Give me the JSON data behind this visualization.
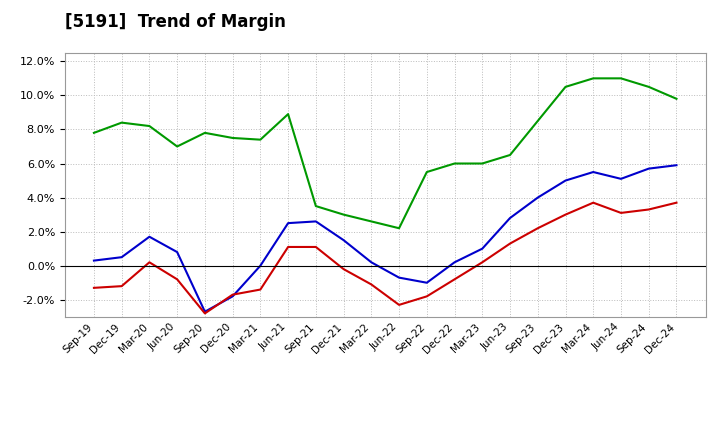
{
  "title": "[5191]  Trend of Margin",
  "x_labels": [
    "Sep-19",
    "Dec-19",
    "Mar-20",
    "Jun-20",
    "Sep-20",
    "Dec-20",
    "Mar-21",
    "Jun-21",
    "Sep-21",
    "Dec-21",
    "Mar-22",
    "Jun-22",
    "Sep-22",
    "Dec-22",
    "Mar-23",
    "Jun-23",
    "Sep-23",
    "Dec-23",
    "Mar-24",
    "Jun-24",
    "Sep-24",
    "Dec-24"
  ],
  "ordinary_income": [
    0.3,
    0.5,
    1.7,
    0.8,
    -2.7,
    -1.8,
    0.0,
    2.5,
    2.6,
    1.5,
    0.2,
    -0.7,
    -1.0,
    0.2,
    1.0,
    2.8,
    4.0,
    5.0,
    5.5,
    5.1,
    5.7,
    5.9
  ],
  "net_income": [
    -1.3,
    -1.2,
    0.2,
    -0.8,
    -2.8,
    -1.7,
    -1.4,
    1.1,
    1.1,
    -0.2,
    -1.1,
    -2.3,
    -1.8,
    -0.8,
    0.2,
    1.3,
    2.2,
    3.0,
    3.7,
    3.1,
    3.3,
    3.7
  ],
  "operating_cashflow": [
    7.8,
    8.4,
    8.2,
    7.0,
    7.8,
    7.5,
    7.4,
    8.9,
    3.5,
    3.0,
    2.6,
    2.2,
    5.5,
    6.0,
    6.0,
    6.5,
    8.5,
    10.5,
    11.0,
    11.0,
    10.5,
    9.8
  ],
  "line_colors": {
    "ordinary_income": "#0000CC",
    "net_income": "#CC0000",
    "operating_cashflow": "#009900"
  },
  "ylim": [
    -3.0,
    12.5
  ],
  "yticks": [
    -2.0,
    0.0,
    2.0,
    4.0,
    6.0,
    8.0,
    10.0,
    12.0
  ],
  "background_color": "#FFFFFF",
  "plot_bg_color": "#FFFFFF",
  "grid_color": "#BBBBBB"
}
